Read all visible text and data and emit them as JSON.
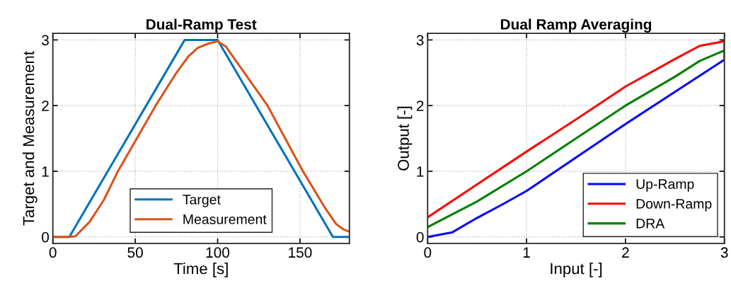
{
  "chart_data": [
    {
      "type": "line",
      "title": "Dual-Ramp Test",
      "xlabel": "Time [s]",
      "ylabel": "Target and Measurement",
      "xlim": [
        0,
        180
      ],
      "xticks": [
        0,
        50,
        100,
        150
      ],
      "ylim": [
        -0.1,
        3.1
      ],
      "yticks": [
        0,
        1,
        2,
        3
      ],
      "grid": true,
      "legend": "bottom",
      "line_style": "solid",
      "series": [
        {
          "name": "Target",
          "color": "#0072bd",
          "x": [
            0,
            10,
            80,
            100,
            170,
            180
          ],
          "values": [
            0,
            0,
            3,
            3,
            0,
            0
          ]
        },
        {
          "name": "Measurement",
          "color": "#d95319",
          "x": [
            0,
            10,
            13.7,
            22.3,
            30.9,
            39.5,
            62.4,
            75,
            82.3,
            88,
            93.8,
            100,
            105,
            112,
            130.3,
            151.8,
            165,
            171.8,
            176,
            180
          ],
          "values": [
            0,
            0,
            0.01,
            0.23,
            0.56,
            1,
            2,
            2.5,
            2.75,
            2.88,
            2.94,
            2.98,
            2.9,
            2.65,
            2,
            1,
            0.45,
            0.2,
            0.12,
            0.08
          ]
        }
      ]
    },
    {
      "type": "line",
      "title": "Dual Ramp Averaging",
      "xlabel": "Input [-]",
      "ylabel": "Output [-]",
      "xlim": [
        0,
        3
      ],
      "xticks": [
        0,
        1,
        2,
        3
      ],
      "ylim": [
        -0.1,
        3.1
      ],
      "yticks": [
        0,
        1,
        2,
        3
      ],
      "grid": true,
      "legend": "bottom right",
      "line_style": "solid",
      "series": [
        {
          "name": "Up-Ramp",
          "color": "#0000ff",
          "x": [
            0,
            0.25,
            0.5,
            0.75,
            1,
            1.5,
            2,
            2.5,
            3
          ],
          "values": [
            0,
            0.07,
            0.29,
            0.49,
            0.7,
            1.21,
            1.72,
            2.21,
            2.7
          ]
        },
        {
          "name": "Down-Ramp",
          "color": "#ff0000",
          "x": [
            0,
            0.5,
            1,
            1.5,
            2,
            2.5,
            2.75,
            3,
            3
          ],
          "values": [
            0.3,
            0.8,
            1.3,
            1.79,
            2.29,
            2.71,
            2.91,
            2.98,
            2.85
          ]
        },
        {
          "name": "DRA",
          "color": "#007f00",
          "x": [
            0,
            0.5,
            1,
            1.5,
            2,
            2.5,
            2.75,
            3,
            3
          ],
          "values": [
            0.15,
            0.54,
            1,
            1.5,
            2,
            2.44,
            2.68,
            2.84,
            2.7
          ]
        }
      ]
    }
  ]
}
